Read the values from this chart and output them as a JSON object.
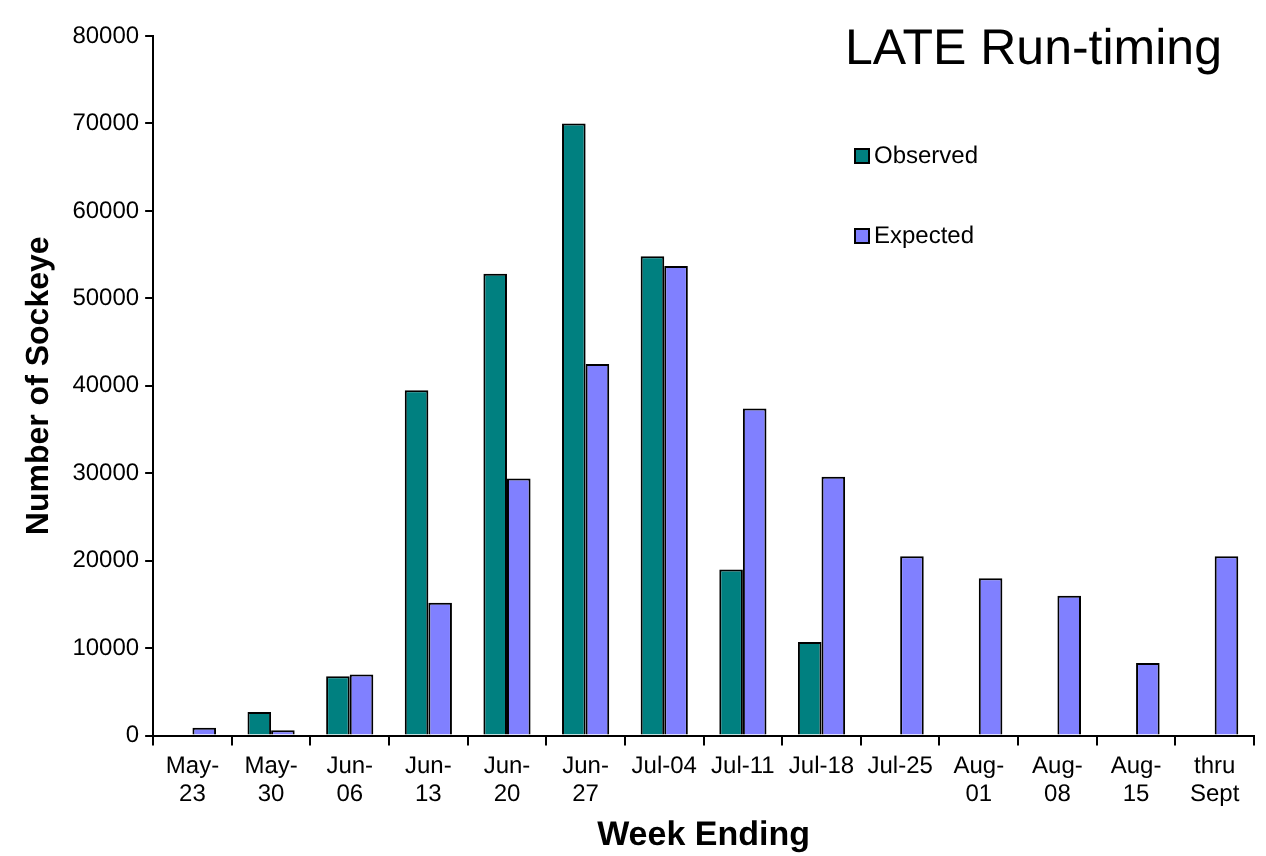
{
  "chart_data": {
    "type": "bar",
    "title": "LATE Run-timing",
    "xlabel": "Week Ending",
    "ylabel": "Number of Sockeye",
    "categories": [
      "May-23",
      "May-30",
      "Jun-06",
      "Jun-13",
      "Jun-20",
      "Jun-27",
      "Jul-04",
      "Jul-11",
      "Jul-18",
      "Jul-25",
      "Aug-01",
      "Aug-08",
      "Aug-15",
      "thru Sept"
    ],
    "series": [
      {
        "name": "Observed",
        "color": "#008080",
        "values": [
          null,
          2700,
          6800,
          39500,
          52800,
          70000,
          54800,
          19000,
          10700,
          0,
          null,
          null,
          null,
          null
        ]
      },
      {
        "name": "Expected",
        "color": "#8080ff",
        "values": [
          900,
          600,
          7000,
          15200,
          29400,
          42500,
          53700,
          37400,
          29600,
          20500,
          18000,
          16000,
          8300,
          20500
        ]
      }
    ],
    "ylim": [
      0,
      80000
    ],
    "yticks": [
      0,
      10000,
      20000,
      30000,
      40000,
      50000,
      60000,
      70000,
      80000
    ],
    "grid": false,
    "legend": "top right"
  }
}
